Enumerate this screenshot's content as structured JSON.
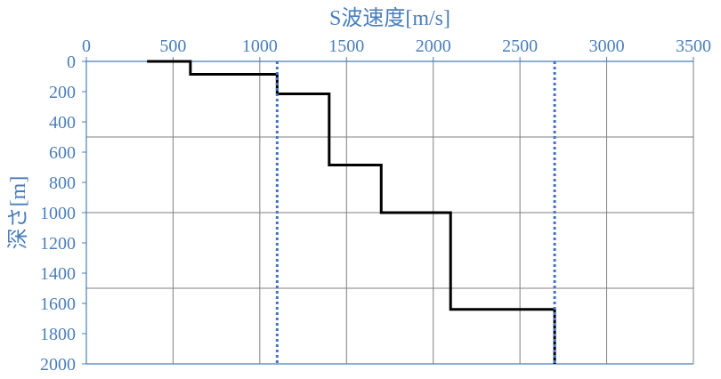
{
  "chart_data": {
    "type": "line",
    "xlabel": "S波速度[m/s]",
    "ylabel": "深さ[m]",
    "xlim": [
      0,
      3500
    ],
    "ylim": [
      0,
      2000
    ],
    "y_inverted": true,
    "x_axis_position": "top",
    "xticks": [
      0,
      500,
      1000,
      1500,
      2000,
      2500,
      3000,
      3500
    ],
    "yticks": [
      0,
      200,
      400,
      600,
      800,
      1000,
      1200,
      1400,
      1600,
      1800,
      2000
    ],
    "x_gridlines": [
      500,
      1000,
      1500,
      2000,
      2500,
      3000,
      3500
    ],
    "y_gridlines": [
      500,
      1000,
      1500
    ],
    "series": [
      {
        "style": "solid",
        "color": "#000000",
        "points": [
          [
            350,
            0
          ],
          [
            600,
            0
          ],
          [
            600,
            85
          ],
          [
            1100,
            85
          ],
          [
            1100,
            215
          ],
          [
            1400,
            215
          ],
          [
            1400,
            685
          ],
          [
            1700,
            685
          ],
          [
            1700,
            1000
          ],
          [
            2100,
            1000
          ],
          [
            2100,
            1640
          ],
          [
            2700,
            1640
          ],
          [
            2700,
            2000
          ]
        ]
      },
      {
        "style": "dotted",
        "color": "#4472c4",
        "points": [
          [
            1100,
            0
          ],
          [
            1100,
            2000
          ]
        ]
      },
      {
        "style": "dotted",
        "color": "#4472c4",
        "points": [
          [
            2700,
            0
          ],
          [
            2700,
            2000
          ]
        ]
      }
    ],
    "colors": {
      "axis": "#4a7ebb",
      "grid": "#7f7f7f",
      "text": "#4a7ebb"
    }
  }
}
